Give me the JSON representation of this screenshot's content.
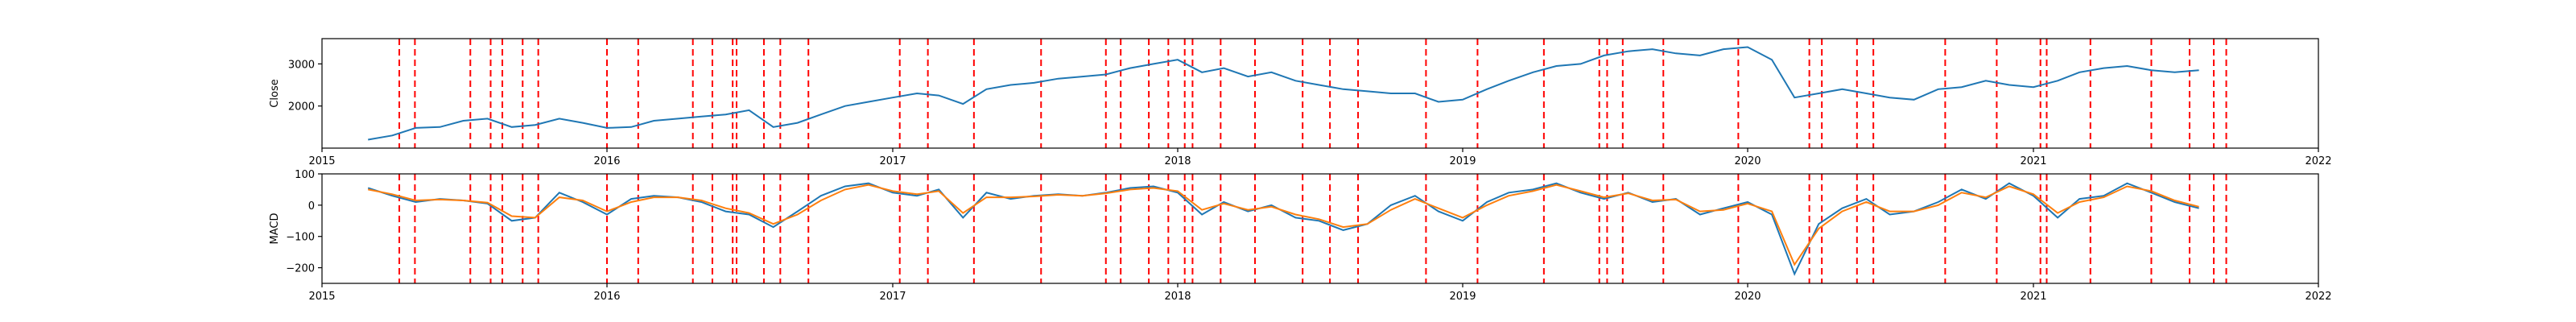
{
  "chart_data": [
    {
      "type": "line",
      "ylabel": "Close",
      "x_range": [
        "2015-01-01",
        "2022-01-01"
      ],
      "ylim": [
        1000,
        3600
      ],
      "x_tick_labels": [
        "2015",
        "2016",
        "2017",
        "2018",
        "2019",
        "2020",
        "2021",
        "2022"
      ],
      "y_ticks": [
        2000,
        3000
      ],
      "y_tick_labels": [
        "2000",
        "3000"
      ],
      "line_color": "#1f77b4",
      "event_color": "#ff0000",
      "series": [
        {
          "x": [
            "2015-03-01",
            "2015-04-01",
            "2015-05-01",
            "2015-06-01",
            "2015-07-01",
            "2015-08-01",
            "2015-09-01",
            "2015-10-01",
            "2015-11-01",
            "2015-12-01",
            "2016-01-01",
            "2016-02-01",
            "2016-03-01",
            "2016-04-01",
            "2016-05-01",
            "2016-06-01",
            "2016-07-01",
            "2016-08-01",
            "2016-09-01",
            "2016-10-01",
            "2016-11-01",
            "2016-12-01",
            "2017-01-01",
            "2017-02-01",
            "2017-03-01",
            "2017-04-01",
            "2017-05-01",
            "2017-06-01",
            "2017-07-01",
            "2017-08-01",
            "2017-09-01",
            "2017-10-01",
            "2017-11-01",
            "2017-12-01",
            "2018-01-01",
            "2018-02-01",
            "2018-03-01",
            "2018-04-01",
            "2018-05-01",
            "2018-06-01",
            "2018-07-01",
            "2018-08-01",
            "2018-09-01",
            "2018-10-01",
            "2018-11-01",
            "2018-12-01",
            "2019-01-01",
            "2019-02-01",
            "2019-03-01",
            "2019-04-01",
            "2019-05-01",
            "2019-06-01",
            "2019-07-01",
            "2019-08-01",
            "2019-09-01",
            "2019-10-01",
            "2019-11-01",
            "2019-12-01",
            "2020-01-01",
            "2020-02-01",
            "2020-03-01",
            "2020-04-01",
            "2020-05-01",
            "2020-06-01",
            "2020-07-01",
            "2020-08-01",
            "2020-09-01",
            "2020-10-01",
            "2020-11-01",
            "2020-12-01",
            "2021-01-01",
            "2021-02-01",
            "2021-03-01",
            "2021-04-01",
            "2021-05-01",
            "2021-06-01",
            "2021-07-01",
            "2021-08-01"
          ],
          "values": [
            1200,
            1300,
            1480,
            1500,
            1650,
            1700,
            1500,
            1550,
            1700,
            1600,
            1480,
            1500,
            1650,
            1700,
            1750,
            1800,
            1900,
            1500,
            1600,
            1800,
            2000,
            2100,
            2200,
            2300,
            2250,
            2050,
            2400,
            2500,
            2550,
            2650,
            2700,
            2750,
            2900,
            3000,
            3100,
            2800,
            2900,
            2700,
            2800,
            2600,
            2500,
            2400,
            2350,
            2300,
            2300,
            2100,
            2150,
            2400,
            2600,
            2800,
            2950,
            3000,
            3200,
            3300,
            3350,
            3250,
            3200,
            3350,
            3400,
            3100,
            2200,
            2300,
            2400,
            2300,
            2200,
            2150,
            2400,
            2450,
            2600,
            2500,
            2450,
            2600,
            2800,
            2900,
            2950,
            2850,
            2800,
            2850
          ]
        }
      ]
    },
    {
      "type": "line",
      "ylabel": "MACD",
      "x_range": [
        "2015-01-01",
        "2022-01-01"
      ],
      "ylim": [
        -250,
        100
      ],
      "x_tick_labels": [
        "2015",
        "2016",
        "2017",
        "2018",
        "2019",
        "2020",
        "2021",
        "2022"
      ],
      "y_ticks": [
        -200,
        -100,
        0,
        100
      ],
      "y_tick_labels": [
        "−200",
        "−100",
        "0",
        "100"
      ],
      "series_colors": [
        "#1f77b4",
        "#ff7f0e"
      ],
      "event_color": "#ff0000",
      "series": [
        {
          "x": [
            "2015-03-01",
            "2015-04-01",
            "2015-05-01",
            "2015-06-01",
            "2015-07-01",
            "2015-08-01",
            "2015-09-01",
            "2015-10-01",
            "2015-11-01",
            "2015-12-01",
            "2016-01-01",
            "2016-02-01",
            "2016-03-01",
            "2016-04-01",
            "2016-05-01",
            "2016-06-01",
            "2016-07-01",
            "2016-08-01",
            "2016-09-01",
            "2016-10-01",
            "2016-11-01",
            "2016-12-01",
            "2017-01-01",
            "2017-02-01",
            "2017-03-01",
            "2017-04-01",
            "2017-05-01",
            "2017-06-01",
            "2017-07-01",
            "2017-08-01",
            "2017-09-01",
            "2017-10-01",
            "2017-11-01",
            "2017-12-01",
            "2018-01-01",
            "2018-02-01",
            "2018-03-01",
            "2018-04-01",
            "2018-05-01",
            "2018-06-01",
            "2018-07-01",
            "2018-08-01",
            "2018-09-01",
            "2018-10-01",
            "2018-11-01",
            "2018-12-01",
            "2019-01-01",
            "2019-02-01",
            "2019-03-01",
            "2019-04-01",
            "2019-05-01",
            "2019-06-01",
            "2019-07-01",
            "2019-08-01",
            "2019-09-01",
            "2019-10-01",
            "2019-11-01",
            "2019-12-01",
            "2020-01-01",
            "2020-02-01",
            "2020-03-01",
            "2020-04-01",
            "2020-05-01",
            "2020-06-01",
            "2020-07-01",
            "2020-08-01",
            "2020-09-01",
            "2020-10-01",
            "2020-11-01",
            "2020-12-01",
            "2021-01-01",
            "2021-02-01",
            "2021-03-01",
            "2021-04-01",
            "2021-05-01",
            "2021-06-01",
            "2021-07-01",
            "2021-08-01"
          ],
          "values": [
            55,
            30,
            10,
            20,
            15,
            5,
            -50,
            -40,
            40,
            10,
            -30,
            20,
            30,
            25,
            10,
            -20,
            -30,
            -70,
            -20,
            30,
            60,
            70,
            40,
            30,
            50,
            -40,
            40,
            20,
            30,
            35,
            30,
            40,
            55,
            60,
            40,
            -30,
            10,
            -20,
            0,
            -40,
            -50,
            -80,
            -60,
            0,
            30,
            -20,
            -50,
            10,
            40,
            50,
            70,
            40,
            20,
            40,
            10,
            20,
            -30,
            -10,
            10,
            -30,
            -220,
            -60,
            -10,
            20,
            -30,
            -20,
            10,
            50,
            20,
            70,
            30,
            -40,
            20,
            30,
            70,
            40,
            10,
            -10
          ]
        },
        {
          "x": [
            "2015-03-01",
            "2015-04-01",
            "2015-05-01",
            "2015-06-01",
            "2015-07-01",
            "2015-08-01",
            "2015-09-01",
            "2015-10-01",
            "2015-11-01",
            "2015-12-01",
            "2016-01-01",
            "2016-02-01",
            "2016-03-01",
            "2016-04-01",
            "2016-05-01",
            "2016-06-01",
            "2016-07-01",
            "2016-08-01",
            "2016-09-01",
            "2016-10-01",
            "2016-11-01",
            "2016-12-01",
            "2017-01-01",
            "2017-02-01",
            "2017-03-01",
            "2017-04-01",
            "2017-05-01",
            "2017-06-01",
            "2017-07-01",
            "2017-08-01",
            "2017-09-01",
            "2017-10-01",
            "2017-11-01",
            "2017-12-01",
            "2018-01-01",
            "2018-02-01",
            "2018-03-01",
            "2018-04-01",
            "2018-05-01",
            "2018-06-01",
            "2018-07-01",
            "2018-08-01",
            "2018-09-01",
            "2018-10-01",
            "2018-11-01",
            "2018-12-01",
            "2019-01-01",
            "2019-02-01",
            "2019-03-01",
            "2019-04-01",
            "2019-05-01",
            "2019-06-01",
            "2019-07-01",
            "2019-08-01",
            "2019-09-01",
            "2019-10-01",
            "2019-11-01",
            "2019-12-01",
            "2020-01-01",
            "2020-02-01",
            "2020-03-01",
            "2020-04-01",
            "2020-05-01",
            "2020-06-01",
            "2020-07-01",
            "2020-08-01",
            "2020-09-01",
            "2020-10-01",
            "2020-11-01",
            "2020-12-01",
            "2021-01-01",
            "2021-02-01",
            "2021-03-01",
            "2021-04-01",
            "2021-05-01",
            "2021-06-01",
            "2021-07-01",
            "2021-08-01"
          ],
          "values": [
            50,
            35,
            15,
            18,
            15,
            8,
            -35,
            -40,
            25,
            15,
            -20,
            10,
            25,
            25,
            15,
            -10,
            -25,
            -60,
            -30,
            15,
            50,
            65,
            45,
            35,
            45,
            -25,
            25,
            25,
            28,
            33,
            30,
            38,
            50,
            55,
            45,
            -15,
            5,
            -15,
            -5,
            -30,
            -45,
            -70,
            -60,
            -15,
            20,
            -10,
            -40,
            0,
            30,
            45,
            65,
            45,
            25,
            38,
            15,
            18,
            -20,
            -15,
            5,
            -20,
            -190,
            -75,
            -20,
            10,
            -20,
            -20,
            0,
            40,
            25,
            60,
            35,
            -25,
            10,
            25,
            60,
            45,
            15,
            -5
          ]
        }
      ]
    }
  ],
  "event_dates": [
    "2015-04-10",
    "2015-04-30",
    "2015-07-10",
    "2015-08-05",
    "2015-08-20",
    "2015-09-15",
    "2015-10-05",
    "2016-01-01",
    "2016-02-10",
    "2016-04-20",
    "2016-05-15",
    "2016-06-10",
    "2016-06-15",
    "2016-07-20",
    "2016-08-10",
    "2016-09-15",
    "2017-01-10",
    "2017-02-15",
    "2017-04-15",
    "2017-07-10",
    "2017-10-01",
    "2017-10-20",
    "2017-11-25",
    "2017-12-20",
    "2018-01-10",
    "2018-01-20",
    "2018-02-25",
    "2018-04-10",
    "2018-06-10",
    "2018-07-15",
    "2018-08-20",
    "2018-11-15",
    "2019-01-20",
    "2019-04-15",
    "2019-06-25",
    "2019-07-05",
    "2019-07-25",
    "2019-09-15",
    "2019-12-20",
    "2020-03-20",
    "2020-04-05",
    "2020-05-20",
    "2020-06-10",
    "2020-09-10",
    "2020-11-15",
    "2021-01-10",
    "2021-01-18",
    "2021-03-15",
    "2021-06-01",
    "2021-07-20",
    "2021-08-20",
    "2021-09-05"
  ]
}
